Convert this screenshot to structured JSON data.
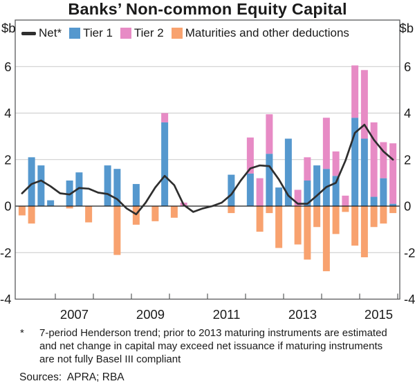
{
  "title": "Banks’ Non-common Equity Capital",
  "y_axis": {
    "unit_left": "$b",
    "unit_right": "$b"
  },
  "footnote": {
    "marker": "*",
    "text": "7-period Henderson trend; prior to 2013 maturing instruments are estimated and net change in capital may exceed net issuance if maturing instruments are not fully Basel III compliant"
  },
  "sources": "Sources:  APRA; RBA",
  "chart_data": {
    "type": "bar",
    "subtype": "stacked-quarterly-bars-with-trend-line",
    "title": "Banks’ Non-common Equity Capital",
    "unit": "$b",
    "ylim": [
      -4,
      8
    ],
    "yticks": [
      -4,
      -2,
      0,
      2,
      4,
      6
    ],
    "grid": true,
    "legend_position": "top-left-inside",
    "year_labels": [
      "2007",
      "2009",
      "2011",
      "2013",
      "2015"
    ],
    "year_ticks": [
      2007,
      2008,
      2009,
      2010,
      2011,
      2012,
      2013,
      2014,
      2015,
      2016
    ],
    "categories": [
      "2006 Q1",
      "2006 Q2",
      "2006 Q3",
      "2006 Q4",
      "2007 Q1",
      "2007 Q2",
      "2007 Q3",
      "2007 Q4",
      "2008 Q1",
      "2008 Q2",
      "2008 Q3",
      "2008 Q4",
      "2009 Q1",
      "2009 Q2",
      "2009 Q3",
      "2009 Q4",
      "2010 Q1",
      "2010 Q2",
      "2010 Q3",
      "2010 Q4",
      "2011 Q1",
      "2011 Q2",
      "2011 Q3",
      "2011 Q4",
      "2012 Q1",
      "2012 Q2",
      "2012 Q3",
      "2012 Q4",
      "2013 Q1",
      "2013 Q2",
      "2013 Q3",
      "2013 Q4",
      "2014 Q1",
      "2014 Q2",
      "2014 Q3",
      "2014 Q4",
      "2015 Q1",
      "2015 Q2",
      "2015 Q3",
      "2015 Q4"
    ],
    "series": [
      {
        "name": "Tier 1",
        "type": "bar",
        "color": "#5598CE",
        "values": [
          0,
          2.1,
          1.75,
          0.25,
          0,
          1.1,
          1.45,
          0,
          0,
          1.75,
          1.6,
          0,
          0.95,
          0,
          0,
          3.6,
          0,
          0,
          0,
          0,
          0,
          0,
          1.35,
          0,
          1.4,
          0,
          2.25,
          0.8,
          2.9,
          0,
          1.1,
          1.75,
          1.6,
          1.3,
          0,
          3.8,
          2.9,
          0.4,
          1.2,
          0.1
        ]
      },
      {
        "name": "Tier 2",
        "type": "bar",
        "color": "#E78BC5",
        "values": [
          0,
          0,
          0,
          0,
          0,
          0,
          0,
          0,
          0,
          0,
          0,
          0,
          0,
          0,
          0,
          0.4,
          0,
          0.15,
          0,
          0,
          0,
          0,
          0,
          0,
          1.55,
          1.2,
          1.7,
          0,
          0,
          0.7,
          1.0,
          0,
          2.2,
          1.05,
          0.45,
          2.25,
          2.95,
          3.2,
          1.55,
          2.6
        ]
      },
      {
        "name": "Maturities and other deductions",
        "type": "bar",
        "color": "#F8A26F",
        "values": [
          -0.4,
          -0.75,
          0,
          0,
          0,
          -0.1,
          0,
          -0.7,
          0,
          0,
          -2.1,
          0,
          -0.8,
          0,
          -0.65,
          0,
          -0.5,
          0,
          0,
          0,
          0,
          0,
          -0.3,
          0,
          0,
          -1.1,
          -0.3,
          -1.8,
          0,
          -1.65,
          -2.3,
          -0.9,
          -2.8,
          -1.2,
          -0.25,
          -1.7,
          -2.2,
          -0.9,
          -0.75,
          -0.3
        ]
      },
      {
        "name": "Net*",
        "type": "line",
        "color": "#2E2E2E",
        "values": [
          0.55,
          0.95,
          1.1,
          0.85,
          0.55,
          0.5,
          0.78,
          0.75,
          0.58,
          0.52,
          0.3,
          -0.1,
          -0.35,
          0.15,
          0.8,
          1.3,
          0.9,
          0.05,
          -0.25,
          -0.1,
          0,
          0.15,
          0.5,
          1.1,
          1.62,
          1.75,
          1.72,
          1.15,
          0.45,
          0.1,
          0.1,
          0.45,
          0.82,
          1.0,
          1.95,
          3.15,
          3.5,
          2.85,
          2.35,
          2.0
        ]
      }
    ],
    "colors": {
      "grid": "#c9c9c9",
      "frame": "#58595B",
      "zero_line": "#1a1a1a",
      "text": "#1a1a1a"
    }
  }
}
